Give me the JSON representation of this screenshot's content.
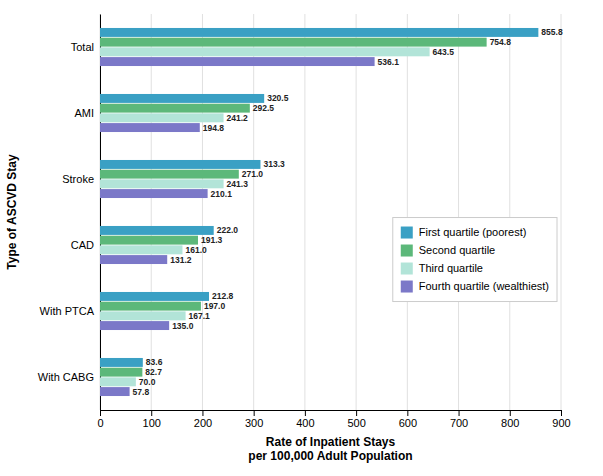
{
  "chart_data": {
    "type": "bar",
    "orientation": "horizontal",
    "categories": [
      "Total",
      "AMI",
      "Stroke",
      "CAD",
      "With PTCA",
      "With CABG"
    ],
    "series": [
      {
        "name": "First quartile (poorest)",
        "color": "#3AA0C4",
        "values": [
          855.8,
          320.5,
          313.3,
          222.0,
          212.8,
          83.6
        ],
        "value_labels": [
          "855.8",
          "320.5",
          "313.3",
          "222.0",
          "212.8",
          "83.6"
        ]
      },
      {
        "name": "Second quartile",
        "color": "#5CB87A",
        "values": [
          754.8,
          292.5,
          271.0,
          191.3,
          197.0,
          82.7
        ],
        "value_labels": [
          "754.8",
          "292.5",
          "271.0",
          "191.3",
          "197.0",
          "82.7"
        ]
      },
      {
        "name": "Third quartile",
        "color": "#B2E4D8",
        "values": [
          643.5,
          241.2,
          241.3,
          161.0,
          167.1,
          70.0
        ],
        "value_labels": [
          "643.5",
          "241.2",
          "241.3",
          "161.0",
          "167.1",
          "70.0"
        ]
      },
      {
        "name": "Fourth quartile (wealthiest)",
        "color": "#7B78C8",
        "values": [
          536.1,
          194.8,
          210.1,
          131.2,
          135.0,
          57.8
        ],
        "value_labels": [
          "536.1",
          "194.8",
          "210.1",
          "131.2",
          "135.0",
          "57.8"
        ]
      }
    ],
    "xlabel": "Rate of Inpatient Stays\nper 100,000 Adult Population",
    "ylabel": "Type of ASCVD Stay",
    "xlim": [
      0,
      900
    ],
    "xticks": [
      0,
      100,
      200,
      300,
      400,
      500,
      600,
      700,
      800,
      900
    ],
    "grid": true,
    "data_labels": true,
    "legend": "right"
  }
}
